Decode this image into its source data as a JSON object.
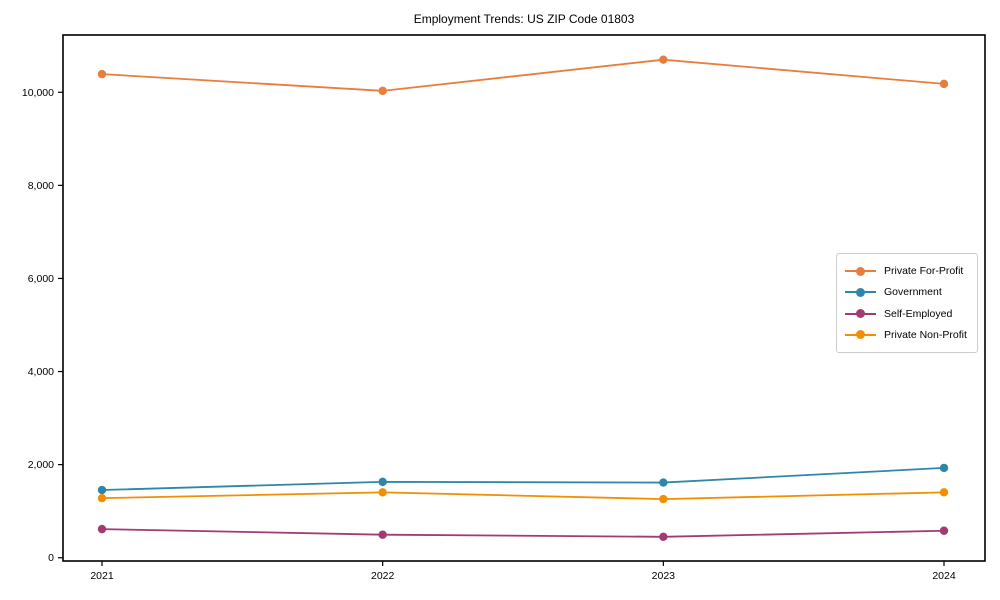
{
  "chart_data": {
    "type": "line",
    "title": "Employment Trends: US ZIP Code 01803",
    "xlabel": "",
    "ylabel": "",
    "x": [
      2021,
      2022,
      2023,
      2024
    ],
    "x_tick_labels": [
      "2021",
      "2022",
      "2023",
      "2024"
    ],
    "y_ticks": [
      0,
      2000,
      4000,
      6000,
      8000,
      10000
    ],
    "y_tick_labels": [
      "0",
      "2,000",
      "4,000",
      "6,000",
      "8,000",
      "10,000"
    ],
    "ylim": [
      -70,
      11230
    ],
    "grid": false,
    "marker": "circle",
    "legend_position": "center right",
    "series": [
      {
        "name": "Private For-Profit",
        "color": "#E87D3E",
        "values": [
          10390,
          10030,
          10700,
          10180
        ]
      },
      {
        "name": "Government",
        "color": "#2E86AB",
        "values": [
          1455,
          1630,
          1615,
          1930
        ]
      },
      {
        "name": "Self-Employed",
        "color": "#A23B72",
        "values": [
          615,
          495,
          450,
          580
        ]
      },
      {
        "name": "Private Non-Profit",
        "color": "#F18F01",
        "values": [
          1280,
          1405,
          1260,
          1405
        ]
      }
    ],
    "axis_color": "#000000",
    "tick_label_color": "#000000",
    "background_color": "#ffffff"
  }
}
